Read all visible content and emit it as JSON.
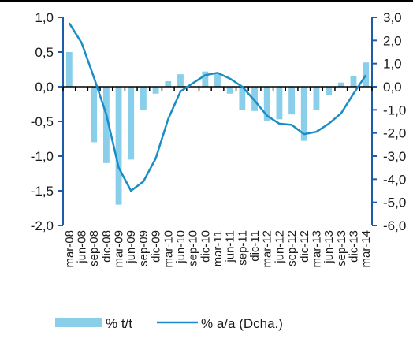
{
  "chart_data": {
    "type": "bar",
    "categories": [
      "mar-08",
      "jun-08",
      "sep-08",
      "dic-08",
      "mar-09",
      "jun-09",
      "sep-09",
      "dic-09",
      "mar-10",
      "jun-10",
      "sep-10",
      "dic-10",
      "mar-11",
      "jun-11",
      "sep-11",
      "dic-11",
      "mar-12",
      "jun-12",
      "sep-12",
      "dic-12",
      "mar-13",
      "jun-13",
      "sep-13",
      "dic-13",
      "mar-14"
    ],
    "series": [
      {
        "name": "% t/t",
        "axis": "left",
        "type": "bar",
        "values": [
          0.5,
          0.0,
          -0.8,
          -1.1,
          -1.7,
          -1.05,
          -0.33,
          -0.1,
          0.08,
          0.18,
          0.0,
          0.22,
          0.18,
          -0.1,
          -0.33,
          -0.35,
          -0.5,
          -0.47,
          -0.4,
          -0.78,
          -0.33,
          -0.12,
          0.06,
          0.15,
          0.35
        ]
      },
      {
        "name": "% a/a (Dcha.)",
        "axis": "right",
        "type": "line",
        "values": [
          2.75,
          1.9,
          0.4,
          -1.2,
          -3.5,
          -4.5,
          -4.1,
          -3.1,
          -1.4,
          -0.2,
          0.15,
          0.5,
          0.6,
          0.35,
          0.0,
          -0.6,
          -1.25,
          -1.6,
          -1.65,
          -2.05,
          -1.95,
          -1.6,
          -1.15,
          -0.3,
          0.5
        ]
      }
    ],
    "y_left": {
      "ylim": [
        -2.0,
        1.0
      ],
      "ticks": [
        "1,0",
        "0,5",
        "0,0",
        "-0,5",
        "-1,0",
        "-1,5",
        "-2,0"
      ],
      "tick_values": [
        1.0,
        0.5,
        0.0,
        -0.5,
        -1.0,
        -1.5,
        -2.0
      ]
    },
    "y_right": {
      "ylim": [
        -6.0,
        3.0
      ],
      "ticks": [
        "3,0",
        "2,0",
        "1,0",
        "0,0",
        "-1,0",
        "-2,0",
        "-3,0",
        "-4,0",
        "-5,0",
        "-6,0"
      ],
      "tick_values": [
        3,
        2,
        1,
        0,
        -1,
        -2,
        -3,
        -4,
        -5,
        -6
      ]
    },
    "colors": {
      "bar": "#89CFEA",
      "line": "#1A8DC7",
      "axis": "#1E5BA8",
      "zero_axis": "#000000"
    },
    "legend_position": "bottom",
    "grid": false
  }
}
